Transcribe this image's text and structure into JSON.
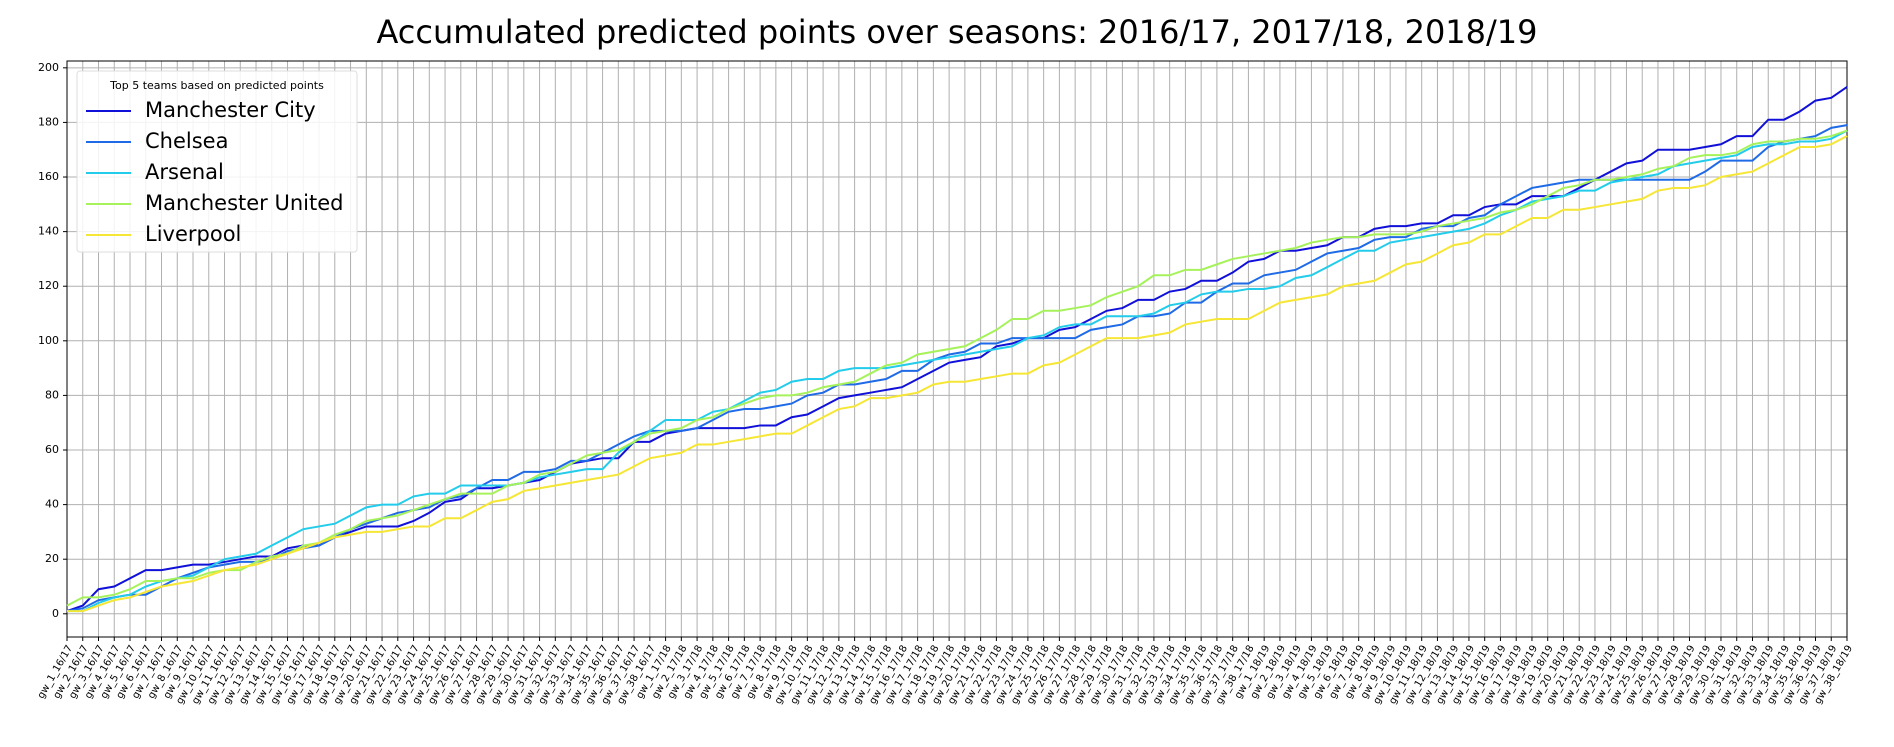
{
  "chart_data": {
    "type": "line",
    "title": "Accumulated predicted points over seasons: 2016/17, 2017/18, 2018/19",
    "legend_title": "Top 5 teams based on predicted points",
    "legend": "upper left",
    "grid": true,
    "ylim": [
      -8.5,
      202.5
    ],
    "yticks": [
      0,
      20,
      40,
      60,
      80,
      100,
      120,
      140,
      160,
      180,
      200
    ],
    "categories": [
      "gw_1_16/17",
      "gw_2_16/17",
      "gw_3_16/17",
      "gw_4_16/17",
      "gw_5_16/17",
      "gw_6_16/17",
      "gw_7_16/17",
      "gw_8_16/17",
      "gw_9_16/17",
      "gw_10_16/17",
      "gw_11_16/17",
      "gw_12_16/17",
      "gw_13_16/17",
      "gw_14_16/17",
      "gw_15_16/17",
      "gw_16_16/17",
      "gw_17_16/17",
      "gw_18_16/17",
      "gw_19_16/17",
      "gw_20_16/17",
      "gw_21_16/17",
      "gw_22_16/17",
      "gw_23_16/17",
      "gw_24_16/17",
      "gw_25_16/17",
      "gw_26_16/17",
      "gw_27_16/17",
      "gw_28_16/17",
      "gw_29_16/17",
      "gw_30_16/17",
      "gw_31_16/17",
      "gw_32_16/17",
      "gw_33_16/17",
      "gw_34_16/17",
      "gw_35_16/17",
      "gw_36_16/17",
      "gw_37_16/17",
      "gw_38_16/17",
      "gw_1_17/18",
      "gw_2_17/18",
      "gw_3_17/18",
      "gw_4_17/18",
      "gw_5_17/18",
      "gw_6_17/18",
      "gw_7_17/18",
      "gw_8_17/18",
      "gw_9_17/18",
      "gw_10_17/18",
      "gw_11_17/18",
      "gw_12_17/18",
      "gw_13_17/18",
      "gw_14_17/18",
      "gw_15_17/18",
      "gw_16_17/18",
      "gw_17_17/18",
      "gw_18_17/18",
      "gw_19_17/18",
      "gw_20_17/18",
      "gw_21_17/18",
      "gw_22_17/18",
      "gw_23_17/18",
      "gw_24_17/18",
      "gw_25_17/18",
      "gw_26_17/18",
      "gw_27_17/18",
      "gw_28_17/18",
      "gw_29_17/18",
      "gw_30_17/18",
      "gw_31_17/18",
      "gw_32_17/18",
      "gw_33_17/18",
      "gw_34_17/18",
      "gw_35_17/18",
      "gw_36_17/18",
      "gw_37_17/18",
      "gw_38_17/18",
      "gw_1_18/19",
      "gw_2_18/19",
      "gw_3_18/19",
      "gw_4_18/19",
      "gw_5_18/19",
      "gw_6_18/19",
      "gw_7_18/19",
      "gw_8_18/19",
      "gw_9_18/19",
      "gw_10_18/19",
      "gw_11_18/19",
      "gw_12_18/19",
      "gw_13_18/19",
      "gw_14_18/19",
      "gw_15_18/19",
      "gw_16_18/19",
      "gw_17_18/19",
      "gw_18_18/19",
      "gw_19_18/19",
      "gw_20_18/19",
      "gw_21_18/19",
      "gw_22_18/19",
      "gw_23_18/19",
      "gw_24_18/19",
      "gw_25_18/19",
      "gw_26_18/19",
      "gw_27_18/19",
      "gw_28_18/19",
      "gw_29_18/19",
      "gw_30_18/19",
      "gw_31_18/19",
      "gw_32_18/19",
      "gw_33_18/19",
      "gw_34_18/19",
      "gw_35_18/19",
      "gw_36_18/19",
      "gw_37_18/19",
      "gw_38_18/19"
    ],
    "series": [
      {
        "name": "Manchester City",
        "color": "#1010d8",
        "values": [
          1,
          3,
          9,
          10,
          13,
          16,
          16,
          17,
          18,
          18,
          19,
          20,
          21,
          21,
          24,
          25,
          25,
          28,
          30,
          32,
          32,
          32,
          34,
          37,
          41,
          42,
          46,
          46,
          47,
          48,
          49,
          52,
          55,
          56,
          57,
          57,
          63,
          63,
          66,
          67,
          68,
          68,
          68,
          68,
          69,
          69,
          72,
          73,
          76,
          79,
          80,
          81,
          82,
          83,
          86,
          89,
          92,
          93,
          94,
          98,
          99,
          101,
          101,
          104,
          105,
          108,
          111,
          112,
          115,
          115,
          118,
          119,
          122,
          122,
          125,
          129,
          130,
          133,
          133,
          134,
          135,
          138,
          138,
          141,
          142,
          142,
          143,
          143,
          146,
          146,
          149,
          150,
          150,
          153,
          153,
          153,
          156,
          159,
          162,
          165,
          166,
          170,
          170,
          170,
          171,
          172,
          175,
          175,
          181,
          181,
          184,
          188,
          189,
          193
        ]
      },
      {
        "name": "Chelsea",
        "color": "#1f6ae6",
        "values": [
          1,
          2,
          5,
          6,
          7,
          7,
          10,
          13,
          15,
          17,
          18,
          19,
          19,
          20,
          23,
          24,
          25,
          28,
          31,
          33,
          35,
          37,
          38,
          39,
          42,
          43,
          46,
          49,
          49,
          52,
          52,
          53,
          56,
          56,
          59,
          62,
          65,
          67,
          67,
          67,
          68,
          71,
          74,
          75,
          75,
          76,
          77,
          80,
          81,
          84,
          84,
          85,
          86,
          89,
          89,
          93,
          95,
          96,
          99,
          99,
          101,
          101,
          101,
          101,
          101,
          104,
          105,
          106,
          109,
          109,
          110,
          114,
          114,
          118,
          121,
          121,
          124,
          125,
          126,
          129,
          132,
          133,
          134,
          137,
          138,
          138,
          141,
          142,
          142,
          145,
          146,
          150,
          153,
          156,
          157,
          158,
          159,
          159,
          159,
          159,
          159,
          159,
          159,
          159,
          162,
          166,
          166,
          166,
          171,
          173,
          174,
          175,
          178,
          179
        ]
      },
      {
        "name": "Arsenal",
        "color": "#22ccea",
        "values": [
          1,
          1,
          4,
          6,
          7,
          10,
          12,
          13,
          14,
          17,
          20,
          21,
          22,
          25,
          28,
          31,
          32,
          33,
          36,
          39,
          40,
          40,
          43,
          44,
          44,
          47,
          47,
          47,
          47,
          48,
          50,
          51,
          52,
          53,
          53,
          59,
          63,
          67,
          71,
          71,
          71,
          74,
          75,
          78,
          81,
          82,
          85,
          86,
          86,
          89,
          90,
          90,
          90,
          91,
          92,
          93,
          94,
          95,
          96,
          97,
          98,
          101,
          102,
          105,
          106,
          106,
          109,
          109,
          109,
          110,
          113,
          114,
          117,
          118,
          118,
          119,
          119,
          120,
          123,
          124,
          127,
          130,
          133,
          133,
          136,
          137,
          138,
          139,
          140,
          141,
          143,
          146,
          148,
          151,
          152,
          153,
          155,
          155,
          158,
          159,
          160,
          161,
          164,
          165,
          166,
          167,
          168,
          171,
          172,
          172,
          173,
          173,
          174,
          177
        ]
      },
      {
        "name": "Manchester United",
        "color": "#a6f25a",
        "values": [
          3,
          6,
          6,
          7,
          9,
          12,
          12,
          13,
          13,
          15,
          16,
          16,
          19,
          21,
          22,
          25,
          26,
          29,
          31,
          34,
          35,
          36,
          38,
          40,
          42,
          44,
          44,
          44,
          47,
          48,
          51,
          52,
          55,
          58,
          59,
          60,
          63,
          66,
          67,
          68,
          71,
          72,
          75,
          77,
          79,
          80,
          80,
          81,
          83,
          84,
          85,
          88,
          91,
          92,
          95,
          96,
          97,
          98,
          101,
          104,
          108,
          108,
          111,
          111,
          112,
          113,
          116,
          118,
          120,
          124,
          124,
          126,
          126,
          128,
          130,
          131,
          132,
          133,
          134,
          136,
          137,
          138,
          138,
          139,
          139,
          139,
          140,
          142,
          143,
          144,
          145,
          147,
          148,
          150,
          153,
          156,
          157,
          159,
          159,
          160,
          161,
          163,
          164,
          167,
          168,
          168,
          169,
          172,
          173,
          173,
          174,
          174,
          175,
          177
        ]
      },
      {
        "name": "Liverpool",
        "color": "#f6e635",
        "values": [
          1,
          1,
          3,
          5,
          6,
          8,
          10,
          11,
          12,
          14,
          16,
          17,
          18,
          20,
          22,
          24,
          26,
          28,
          29,
          30,
          30,
          31,
          32,
          32,
          35,
          35,
          38,
          41,
          42,
          45,
          46,
          47,
          48,
          49,
          50,
          51,
          54,
          57,
          58,
          59,
          62,
          62,
          63,
          64,
          65,
          66,
          66,
          69,
          72,
          75,
          76,
          79,
          79,
          80,
          81,
          84,
          85,
          85,
          86,
          87,
          88,
          88,
          91,
          92,
          95,
          98,
          101,
          101,
          101,
          102,
          103,
          106,
          107,
          108,
          108,
          108,
          111,
          114,
          115,
          116,
          117,
          120,
          121,
          122,
          125,
          128,
          129,
          132,
          135,
          136,
          139,
          139,
          142,
          145,
          145,
          148,
          148,
          149,
          150,
          151,
          152,
          155,
          156,
          156,
          157,
          160,
          161,
          162,
          165,
          168,
          171,
          171,
          172,
          175
        ]
      }
    ]
  }
}
